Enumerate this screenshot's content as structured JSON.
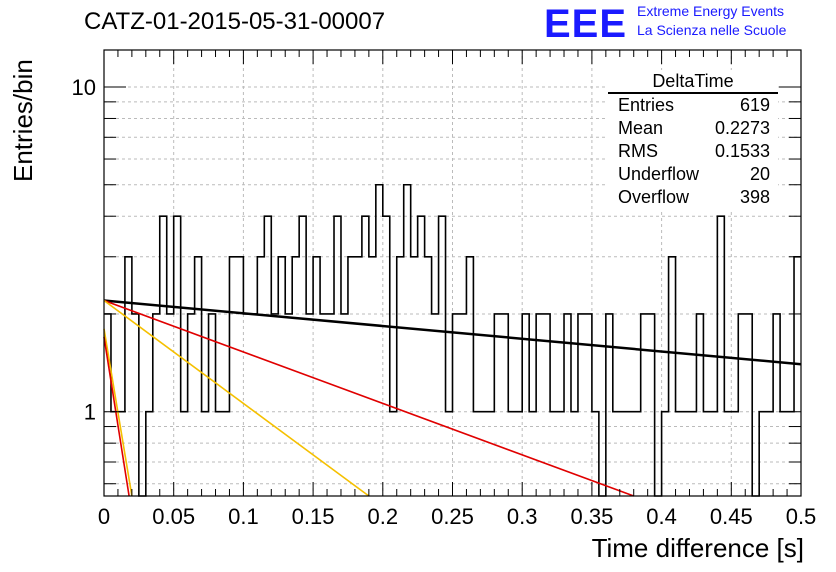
{
  "header": {
    "title": "CATZ-01-2015-05-31-00007",
    "logo": "EEE",
    "org_line1": "Extreme Energy Events",
    "org_line2": "La Scienza nelle Scuole"
  },
  "stats_box": {
    "title": "DeltaTime",
    "rows": [
      {
        "label": "Entries",
        "value": "619"
      },
      {
        "label": "Mean",
        "value": "0.2273"
      },
      {
        "label": "RMS",
        "value": "0.1533"
      },
      {
        "label": "Underflow",
        "value": "20"
      },
      {
        "label": "Overflow",
        "value": "398"
      }
    ]
  },
  "chart_data": {
    "type": "histogram",
    "title": "CATZ-01-2015-05-31-00007",
    "xlabel": "Time difference [s]",
    "ylabel": "Entries/bin",
    "xlim": [
      0,
      0.5
    ],
    "ylim": [
      0.55,
      13
    ],
    "yscale": "log",
    "grid": true,
    "x_ticks": [
      "0",
      "0.05",
      "0.1",
      "0.15",
      "0.2",
      "0.25",
      "0.3",
      "0.35",
      "0.4",
      "0.45",
      "0.5"
    ],
    "y_ticks": [
      "1",
      "10"
    ],
    "bin_width": 0.005,
    "bin_counts": [
      2,
      1,
      1,
      3,
      2,
      0,
      1,
      2,
      4,
      2,
      4,
      1,
      2,
      3,
      1,
      2,
      1,
      1,
      3,
      3,
      2,
      2,
      3,
      4,
      2,
      3,
      2,
      3,
      4,
      2,
      3,
      2,
      2,
      4,
      2,
      3,
      3,
      4,
      3,
      5,
      4,
      1,
      3,
      5,
      3,
      4,
      3,
      2,
      4,
      1,
      2,
      2,
      3,
      1,
      1,
      1,
      2,
      2,
      1,
      1,
      2,
      1,
      2,
      2,
      1,
      1,
      2,
      1,
      2,
      2,
      1,
      0,
      2,
      1,
      1,
      1,
      1,
      2,
      2,
      0,
      1,
      3,
      1,
      1,
      1,
      2,
      1,
      1,
      4,
      1,
      1,
      2,
      2,
      0,
      1,
      1,
      2,
      1,
      1,
      3
    ],
    "fits": [
      {
        "color": "#000000",
        "x": [
          0,
          0.5
        ],
        "y": [
          2.2,
          1.4
        ]
      },
      {
        "color": "#e00000",
        "x": [
          0,
          0.38
        ],
        "y": [
          2.2,
          0.55
        ]
      },
      {
        "color": "#f5c000",
        "x": [
          0,
          0.19
        ],
        "y": [
          2.2,
          0.55
        ]
      },
      {
        "color": "#f5c000",
        "x": [
          0,
          0.02
        ],
        "y": [
          1.8,
          0.55
        ]
      },
      {
        "color": "#e00000",
        "x": [
          0,
          0.018
        ],
        "y": [
          1.7,
          0.55
        ]
      }
    ]
  }
}
